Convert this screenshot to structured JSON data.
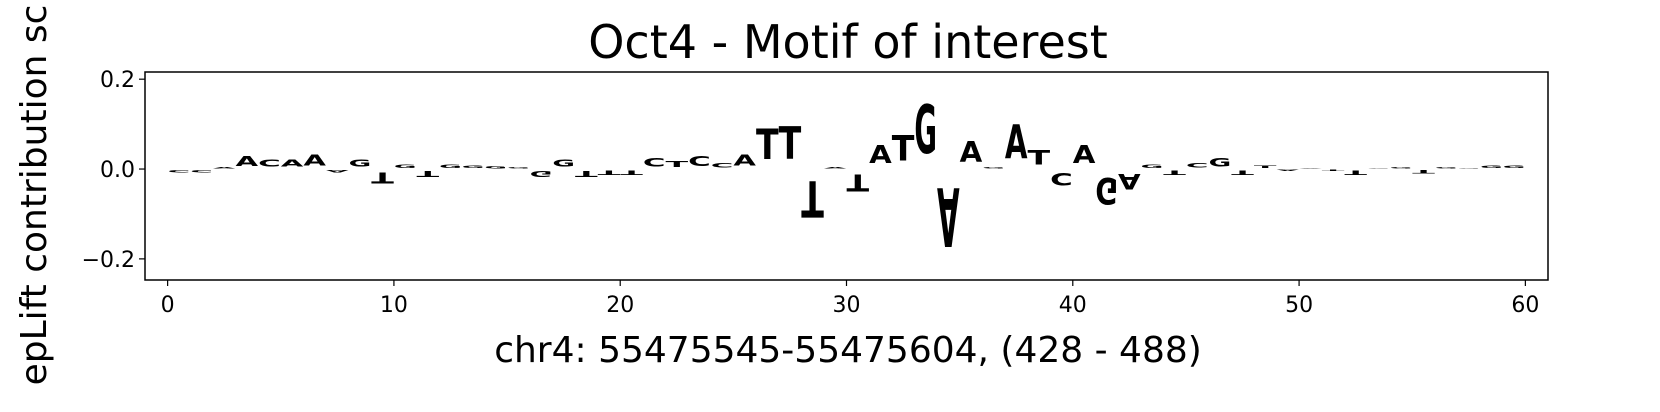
{
  "chart_data": {
    "type": "sequence_logo",
    "title": "Oct4 - Motif of interest",
    "x_label": "chr4: 55475545-55475604, (428 - 488)",
    "y_label": "epLift contribution sc",
    "letters": [
      "C",
      "C",
      "A",
      "A",
      "C",
      "A",
      "A",
      "A",
      "G",
      "T",
      "G",
      "T",
      "G",
      "G",
      "G",
      "G",
      "G",
      "G",
      "T",
      "T",
      "T",
      "C",
      "T",
      "C",
      "C",
      "A",
      "T",
      "T",
      "T",
      "A",
      "T",
      "A",
      "T",
      "G",
      "A",
      "A",
      "G",
      "A",
      "T",
      "C",
      "A",
      "G",
      "A",
      "G",
      "T",
      "C",
      "G",
      "T",
      "T",
      "A",
      "A",
      "T",
      "T",
      "C",
      "G",
      "T",
      "G",
      "G",
      "G",
      "G"
    ],
    "values": [
      -0.01,
      -0.01,
      0.005,
      0.035,
      0.025,
      0.025,
      0.04,
      -0.008,
      0.025,
      -0.04,
      0.012,
      -0.02,
      0.012,
      0.01,
      0.008,
      0.005,
      -0.02,
      0.025,
      -0.02,
      -0.015,
      -0.015,
      0.03,
      0.02,
      0.035,
      0.015,
      0.04,
      0.11,
      0.115,
      -0.13,
      0.005,
      -0.06,
      0.065,
      0.09,
      0.175,
      -0.21,
      0.075,
      0.005,
      0.12,
      0.05,
      -0.045,
      0.065,
      -0.095,
      -0.055,
      0.012,
      -0.015,
      0.015,
      0.03,
      -0.015,
      0.01,
      -0.005,
      0.003,
      -0.005,
      -0.015,
      0.003,
      0.005,
      -0.012,
      0.005,
      0.003,
      0.01,
      0.01
    ],
    "colors": {
      "A": "#008000",
      "C": "#0000ff",
      "G": "#ffa500",
      "T": "#ff0000"
    },
    "xlim": [
      -1,
      61
    ],
    "xticks": [
      0,
      10,
      20,
      30,
      40,
      50,
      60
    ],
    "ylim": [
      -0.247,
      0.216
    ],
    "yticks": [
      {
        "value": -0.2,
        "label": "−0.2"
      },
      {
        "value": 0.0,
        "label": "0.0"
      },
      0.2
    ]
  }
}
